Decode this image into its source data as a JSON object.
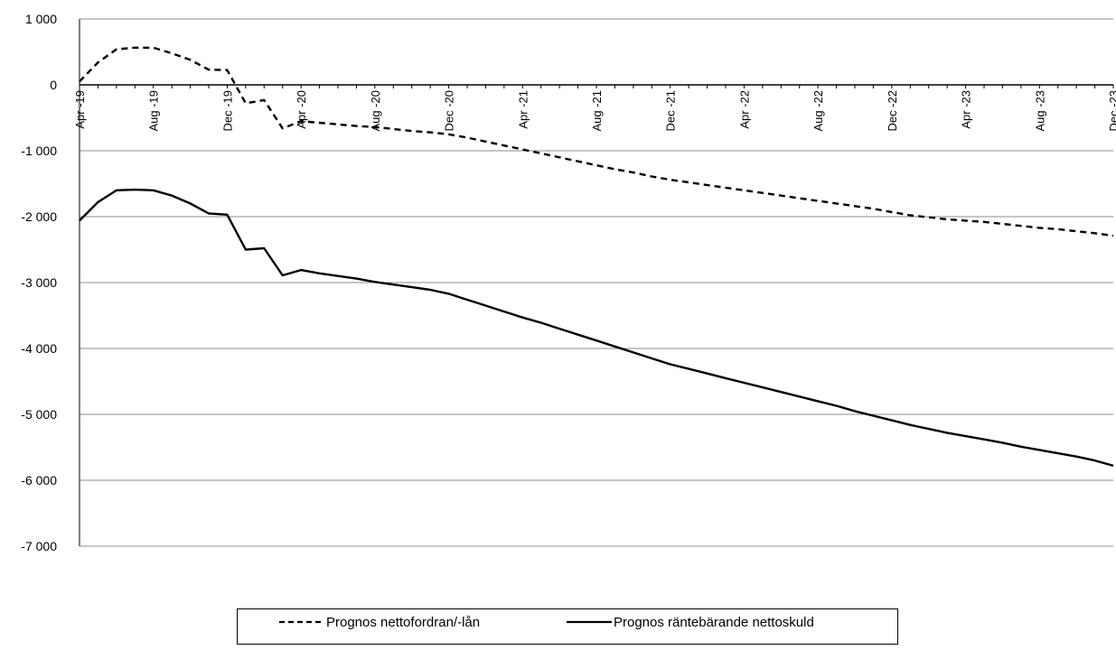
{
  "chart_data": {
    "type": "line",
    "title": "",
    "xlabel": "",
    "ylabel": "",
    "ylim": [
      -7000,
      1000
    ],
    "yticks": [
      1000,
      0,
      -1000,
      -2000,
      -3000,
      -4000,
      -5000,
      -6000,
      -7000
    ],
    "ytick_labels": [
      "1 000",
      "0",
      "-1 000",
      "-2 000",
      "-3 000",
      "-4 000",
      "-5 000",
      "-6 000",
      "-7 000"
    ],
    "grid": true,
    "legend_position": "bottom",
    "x": [
      "Apr -19",
      "May -19",
      "Jun -19",
      "Jul -19",
      "Aug -19",
      "Sep -19",
      "Oct -19",
      "Nov -19",
      "Dec -19",
      "Jan -20",
      "Feb -20",
      "Mar -20",
      "Apr -20",
      "May -20",
      "Jun -20",
      "Jul -20",
      "Aug -20",
      "Sep -20",
      "Oct -20",
      "Nov -20",
      "Dec -20",
      "Jan -21",
      "Feb -21",
      "Mar -21",
      "Apr -21",
      "May -21",
      "Jun -21",
      "Jul -21",
      "Aug -21",
      "Sep -21",
      "Oct -21",
      "Nov -21",
      "Dec -21",
      "Jan -22",
      "Feb -22",
      "Mar -22",
      "Apr -22",
      "May -22",
      "Jun -22",
      "Jul -22",
      "Aug -22",
      "Sep -22",
      "Oct -22",
      "Nov -22",
      "Dec -22",
      "Jan -23",
      "Feb -23",
      "Mar -23",
      "Apr -23",
      "May -23",
      "Jun -23",
      "Jul -23",
      "Aug -23",
      "Sep -23",
      "Oct -23",
      "Nov -23",
      "Dec -23"
    ],
    "x_tick_labels": [
      "Apr -19",
      "Aug -19",
      "Dec -19",
      "Apr -20",
      "Aug -20",
      "Dec -20",
      "Apr -21",
      "Aug -21",
      "Dec -21",
      "Apr -22",
      "Aug -22",
      "Dec -22",
      "Apr -23",
      "Aug -23",
      "Dec -23"
    ],
    "series": [
      {
        "name": "Prognos nettofordran/-lån",
        "style": "dashed",
        "color": "#000000",
        "values": [
          50,
          340,
          540,
          565,
          565,
          480,
          380,
          230,
          225,
          -280,
          -230,
          -660,
          -550,
          -575,
          -600,
          -625,
          -640,
          -670,
          -700,
          -720,
          -750,
          -800,
          -860,
          -920,
          -980,
          -1040,
          -1100,
          -1160,
          -1220,
          -1280,
          -1330,
          -1390,
          -1440,
          -1480,
          -1520,
          -1560,
          -1600,
          -1640,
          -1680,
          -1720,
          -1760,
          -1800,
          -1840,
          -1880,
          -1930,
          -1980,
          -2010,
          -2040,
          -2060,
          -2080,
          -2110,
          -2140,
          -2170,
          -2190,
          -2220,
          -2250,
          -2290
        ]
      },
      {
        "name": "Prognos räntebärande nettoskuld",
        "style": "solid",
        "color": "#000000",
        "values": [
          -2060,
          -1780,
          -1600,
          -1590,
          -1600,
          -1680,
          -1800,
          -1950,
          -1970,
          -2500,
          -2480,
          -2890,
          -2810,
          -2860,
          -2900,
          -2940,
          -2990,
          -3030,
          -3070,
          -3110,
          -3170,
          -3260,
          -3350,
          -3440,
          -3530,
          -3610,
          -3700,
          -3790,
          -3880,
          -3970,
          -4060,
          -4150,
          -4240,
          -4310,
          -4380,
          -4450,
          -4520,
          -4590,
          -4660,
          -4730,
          -4800,
          -4870,
          -4950,
          -5020,
          -5090,
          -5160,
          -5220,
          -5280,
          -5330,
          -5380,
          -5430,
          -5490,
          -5540,
          -5590,
          -5640,
          -5700,
          -5780
        ]
      }
    ]
  }
}
